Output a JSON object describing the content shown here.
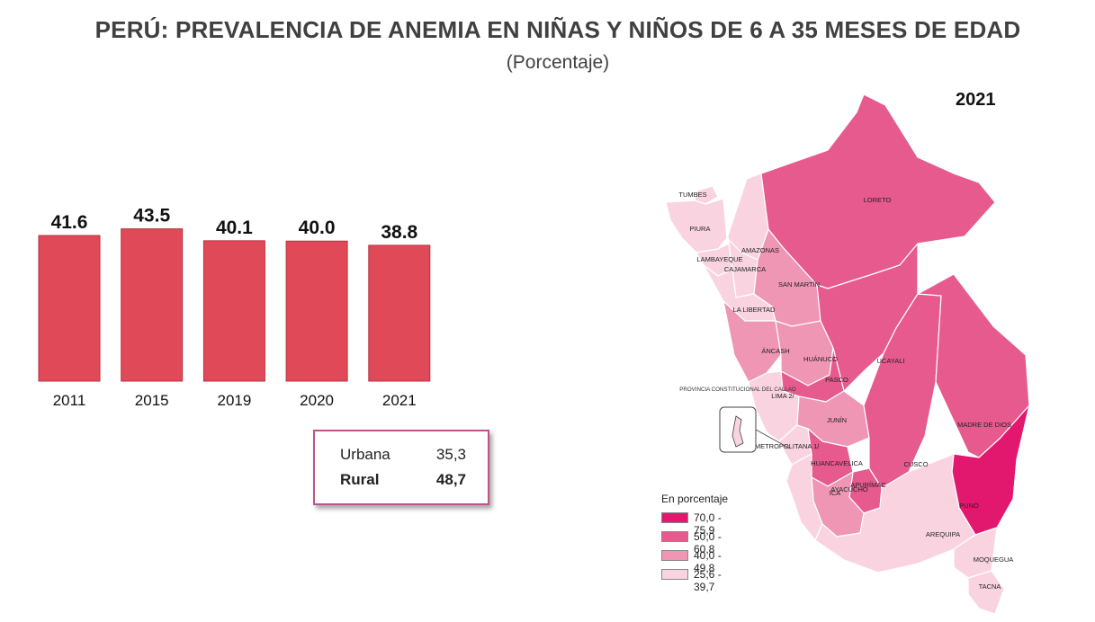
{
  "title": "PERÚ: PREVALENCIA DE ANEMIA EN NIÑAS Y NIÑOS DE 6 A 35 MESES DE EDAD",
  "subtitle": "(Porcentaje)",
  "chart_data": {
    "type": "bar",
    "title": "PERÚ: PREVALENCIA DE ANEMIA EN NIÑAS Y NIÑOS DE 6 A 35 MESES DE EDAD",
    "subtitle": "(Porcentaje)",
    "categories": [
      "2011",
      "2015",
      "2019",
      "2020",
      "2021"
    ],
    "values": [
      41.6,
      43.5,
      40.1,
      40.0,
      38.8
    ],
    "value_labels": [
      "41.6",
      "43.5",
      "40.1",
      "40.0",
      "38.8"
    ],
    "ylim": [
      0,
      45
    ],
    "grid": false,
    "bar_color": "#e04a58"
  },
  "summary": {
    "rows": [
      {
        "label": "Urbana",
        "value": "35,3"
      },
      {
        "label": "Rural",
        "value": "48,7"
      }
    ]
  },
  "map": {
    "year": "2021",
    "legend_title": "En porcentaje",
    "legend": [
      {
        "label": "70,0 - 75,9",
        "color": "#e2186f"
      },
      {
        "label": "50,0 - 60,8",
        "color": "#e65a8e"
      },
      {
        "label": "40,0 - 49,8",
        "color": "#ee96b4"
      },
      {
        "label": "25,6 - 39,7",
        "color": "#f9d4e0"
      }
    ],
    "regions": [
      {
        "name": "TUMBES",
        "class": 3
      },
      {
        "name": "PIURA",
        "class": 3
      },
      {
        "name": "LAMBAYEQUE",
        "class": 3
      },
      {
        "name": "AMAZONAS",
        "class": 3
      },
      {
        "name": "CAJAMARCA",
        "class": 3
      },
      {
        "name": "LA LIBERTAD",
        "class": 3
      },
      {
        "name": "SAN MARTÍN",
        "class": 2
      },
      {
        "name": "LORETO",
        "class": 1
      },
      {
        "name": "ÁNCASH",
        "class": 2
      },
      {
        "name": "HUÁNUCO",
        "class": 2
      },
      {
        "name": "UCAYALI",
        "class": 1
      },
      {
        "name": "PASCO",
        "class": 1
      },
      {
        "name": "LIMA 2/",
        "class": 3
      },
      {
        "name": "JUNÍN",
        "class": 2
      },
      {
        "name": "LIMA METROPOLITANA 1/",
        "class": 3
      },
      {
        "name": "HUANCAVELICA",
        "class": 1
      },
      {
        "name": "CUSCO",
        "class": 1
      },
      {
        "name": "MADRE DE DIOS",
        "class": 1
      },
      {
        "name": "APURÍMAC",
        "class": 1
      },
      {
        "name": "AYACUCHO",
        "class": 2
      },
      {
        "name": "ICA",
        "class": 3
      },
      {
        "name": "PUNO",
        "class": 0
      },
      {
        "name": "AREQUIPA",
        "class": 3
      },
      {
        "name": "MOQUEGUA",
        "class": 3
      },
      {
        "name": "TACNA",
        "class": 3
      }
    ],
    "callao_label": "PROVINCIA CONSTITUCIONAL DEL CALLAO"
  }
}
